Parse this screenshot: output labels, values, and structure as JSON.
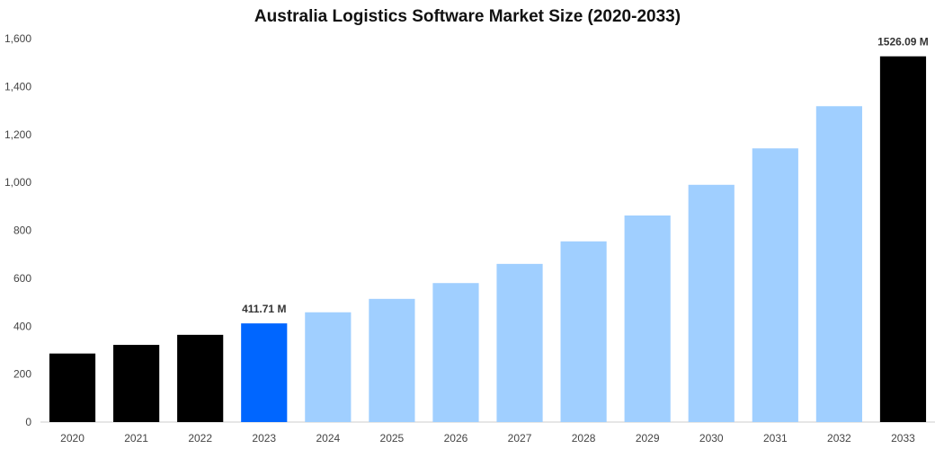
{
  "chart_data": {
    "type": "bar",
    "title": "Australia Logistics Software Market Size (2020-2033)",
    "xlabel": "",
    "ylabel": "",
    "categories": [
      "2020",
      "2021",
      "2022",
      "2023",
      "2024",
      "2025",
      "2026",
      "2027",
      "2028",
      "2029",
      "2030",
      "2031",
      "2032",
      "2033"
    ],
    "values": [
      286,
      322,
      364,
      411.71,
      458,
      514,
      580,
      660,
      754,
      862,
      990,
      1142,
      1318,
      1526.09
    ],
    "bar_colors": [
      "#000000",
      "#000000",
      "#000000",
      "#0066ff",
      "#a0cfff",
      "#a0cfff",
      "#a0cfff",
      "#a0cfff",
      "#a0cfff",
      "#a0cfff",
      "#a0cfff",
      "#a0cfff",
      "#a0cfff",
      "#000000"
    ],
    "data_labels": [
      {
        "index": 3,
        "text": "411.71 M"
      },
      {
        "index": 13,
        "text": "1526.09 M"
      }
    ],
    "ylim": [
      0,
      1600
    ],
    "yticks": [
      0,
      200,
      400,
      600,
      800,
      1000,
      1200,
      1400,
      1600
    ],
    "ytick_labels": [
      "0",
      "200",
      "400",
      "600",
      "800",
      "1,000",
      "1,200",
      "1,400",
      "1,600"
    ],
    "grid": false,
    "legend": "none"
  }
}
